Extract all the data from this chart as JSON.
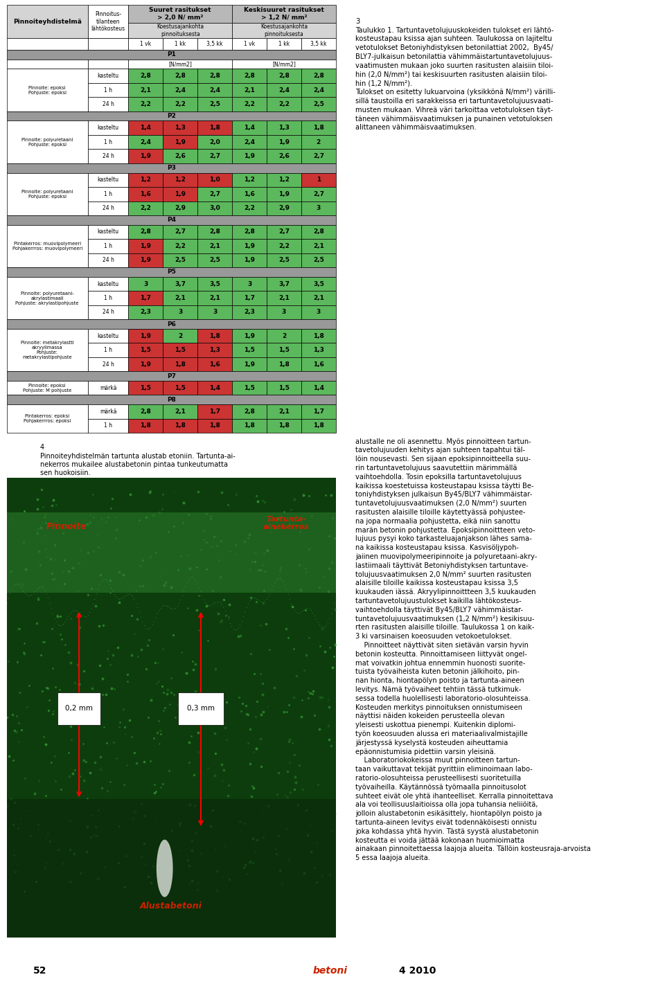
{
  "green": "#5cb85c",
  "red": "#cc3333",
  "gray_header": "#b8b8b8",
  "dark_gray_section": "#999999",
  "light_gray_header": "#d4d4d4",
  "white": "#ffffff",
  "sections": [
    {
      "id": "P1",
      "label": "Pinnoite: epoksi\nPohjuste: epoksi",
      "rows": [
        {
          "moisture": "kasteltu",
          "vals": [
            "2,8",
            "2,8",
            "2,8",
            "2,8",
            "2,8",
            "2,8"
          ],
          "colors": [
            "g",
            "g",
            "g",
            "g",
            "g",
            "g"
          ]
        },
        {
          "moisture": "1 h",
          "vals": [
            "2,1",
            "2,4",
            "2,4",
            "2,1",
            "2,4",
            "2,4"
          ],
          "colors": [
            "g",
            "g",
            "g",
            "g",
            "g",
            "g"
          ]
        },
        {
          "moisture": "24 h",
          "vals": [
            "2,2",
            "2,2",
            "2,5",
            "2,2",
            "2,2",
            "2,5"
          ],
          "colors": [
            "g",
            "g",
            "g",
            "g",
            "g",
            "g"
          ]
        }
      ]
    },
    {
      "id": "P2",
      "label": "Pinnoite: polyuretaani\nPohjuste: epoksi",
      "rows": [
        {
          "moisture": "kasteltu",
          "vals": [
            "1,4",
            "1,3",
            "1,8",
            "1,4",
            "1,3",
            "1,8"
          ],
          "colors": [
            "r",
            "r",
            "r",
            "g",
            "g",
            "g"
          ]
        },
        {
          "moisture": "1 h",
          "vals": [
            "2,4",
            "1,9",
            "2,0",
            "2,4",
            "1,9",
            "2"
          ],
          "colors": [
            "g",
            "r",
            "g",
            "g",
            "g",
            "g"
          ]
        },
        {
          "moisture": "24 h",
          "vals": [
            "1,9",
            "2,6",
            "2,7",
            "1,9",
            "2,6",
            "2,7"
          ],
          "colors": [
            "r",
            "g",
            "g",
            "g",
            "g",
            "g"
          ]
        }
      ]
    },
    {
      "id": "P3",
      "label": "Pinnoite: polyuretaani\nPohjuste: epoksi",
      "rows": [
        {
          "moisture": "kasteltu",
          "vals": [
            "1,2",
            "1,2",
            "1,0",
            "1,2",
            "1,2",
            "1"
          ],
          "colors": [
            "r",
            "r",
            "r",
            "g",
            "g",
            "r"
          ]
        },
        {
          "moisture": "1 h",
          "vals": [
            "1,6",
            "1,9",
            "2,7",
            "1,6",
            "1,9",
            "2,7"
          ],
          "colors": [
            "r",
            "r",
            "g",
            "g",
            "g",
            "g"
          ]
        },
        {
          "moisture": "24 h",
          "vals": [
            "2,2",
            "2,9",
            "3,0",
            "2,2",
            "2,9",
            "3"
          ],
          "colors": [
            "g",
            "g",
            "g",
            "g",
            "g",
            "g"
          ]
        }
      ]
    },
    {
      "id": "P4",
      "label": "Pintakerros: muovipolymeeri\nPohjakerrros: muovipolymeeri",
      "rows": [
        {
          "moisture": "kasteltu",
          "vals": [
            "2,8",
            "2,7",
            "2,8",
            "2,8",
            "2,7",
            "2,8"
          ],
          "colors": [
            "g",
            "g",
            "g",
            "g",
            "g",
            "g"
          ]
        },
        {
          "moisture": "1 h",
          "vals": [
            "1,9",
            "2,2",
            "2,1",
            "1,9",
            "2,2",
            "2,1"
          ],
          "colors": [
            "r",
            "g",
            "g",
            "g",
            "g",
            "g"
          ]
        },
        {
          "moisture": "24 h",
          "vals": [
            "1,9",
            "2,5",
            "2,5",
            "1,9",
            "2,5",
            "2,5"
          ],
          "colors": [
            "r",
            "g",
            "g",
            "g",
            "g",
            "g"
          ]
        }
      ]
    },
    {
      "id": "P5",
      "label": "Pinnoite: polyuretaani-\nakrylastimaali\nPohjuste: akrylastipohjuste",
      "rows": [
        {
          "moisture": "kasteltu",
          "vals": [
            "3",
            "3,7",
            "3,5",
            "3",
            "3,7",
            "3,5"
          ],
          "colors": [
            "g",
            "g",
            "g",
            "g",
            "g",
            "g"
          ]
        },
        {
          "moisture": "1 h",
          "vals": [
            "1,7",
            "2,1",
            "2,1",
            "1,7",
            "2,1",
            "2,1"
          ],
          "colors": [
            "r",
            "g",
            "g",
            "g",
            "g",
            "g"
          ]
        },
        {
          "moisture": "24 h",
          "vals": [
            "2,3",
            "3",
            "3",
            "2,3",
            "3",
            "3"
          ],
          "colors": [
            "g",
            "g",
            "g",
            "g",
            "g",
            "g"
          ]
        }
      ]
    },
    {
      "id": "P6",
      "label": "Pinnoite: metakrylastti\nakryylimassa\nPohjuste:\nmetakrylastipohjuste",
      "rows": [
        {
          "moisture": "kasteltu",
          "vals": [
            "1,9",
            "2",
            "1,8",
            "1,9",
            "2",
            "1,8"
          ],
          "colors": [
            "r",
            "g",
            "r",
            "g",
            "g",
            "g"
          ]
        },
        {
          "moisture": "1 h",
          "vals": [
            "1,5",
            "1,5",
            "1,3",
            "1,5",
            "1,5",
            "1,3"
          ],
          "colors": [
            "r",
            "r",
            "r",
            "g",
            "g",
            "g"
          ]
        },
        {
          "moisture": "24 h",
          "vals": [
            "1,9",
            "1,8",
            "1,6",
            "1,9",
            "1,8",
            "1,6"
          ],
          "colors": [
            "r",
            "r",
            "r",
            "g",
            "g",
            "g"
          ]
        }
      ]
    },
    {
      "id": "P7",
      "label": "Pinnoite: epoksi\nPohjuste: M pohjuste",
      "rows": [
        {
          "moisture": "märkä",
          "vals": [
            "1,5",
            "1,5",
            "1,4",
            "1,5",
            "1,5",
            "1,4"
          ],
          "colors": [
            "r",
            "r",
            "r",
            "g",
            "g",
            "g"
          ]
        }
      ]
    },
    {
      "id": "P8",
      "label": "Pintakerros: epoksi\nPohjakerrros: epoksi",
      "rows": [
        {
          "moisture": "märkä",
          "vals": [
            "2,8",
            "2,1",
            "1,7",
            "2,8",
            "2,1",
            "1,7"
          ],
          "colors": [
            "g",
            "g",
            "r",
            "g",
            "g",
            "g"
          ]
        },
        {
          "moisture": "1 h",
          "vals": [
            "1,8",
            "1,8",
            "1,8",
            "1,8",
            "1,8",
            "1,8"
          ],
          "colors": [
            "r",
            "r",
            "r",
            "g",
            "g",
            "g"
          ]
        }
      ]
    }
  ],
  "text_right_top": "3\nTaulukko 1. Tartuntavetolujuuskokeiden tulokset eri lähtö-\nkosteustapau ksissa ajan suhteen. Taulukossa on lajiteltu\nvetotulokset Betoniyhdistyksen betonilattiat 2002,  By45/\nBLY7-julkaisun betonilattia vähimmäistartuntavetolujuus-\nvaatimusten mukaan joko suurten rasitusten alaisiin tiloi-\nhin (2,0 N/mm²) tai keskisuurten rasitusten alaisiin tiloi-\nhin (1,2 N/mm²).\nTulokset on esitetty lukuarvoina (yksikkönä N/mm²) värilli-\nsillä taustoilla eri sarakkeissa eri tartuntavetolujuusvaati-\nmusten mukaan. Vihreä väri tarkoittaa vetotuloksen täyt-\ntäneen vähimmäisvaatimuksen ja punainen vetotuloksen\nalittaneen vähimmäisvaatimuksen.",
  "text_right_mid": "alustalle ne oli asennettu. Myös pinnoitteen tartun-\ntavetolujuuden kehitys ajan suhteen tapahtui täl-\nlöin nousevasti. Sen sijaan epoksipinnoitteella suu-\nrin tartuntavetolujuus saavutettiin märimmällä\nvaihtoehdolla. Tosin epoksilla tartuntavetolujuus\nkaikissa koestetuissa kosteustapau ksissa täytti Be-\ntoniyhdistyksen julkaisun By45/BLY7 vähimmäistar-\ntuntavetolujuusvaatimuksen (2,0 N/mm²) suurten\nrasitusten alaisille tiloille käytettyässä pohjustee-\nna jopa normaalia pohjustetta, eikä niin sanottu\nmarän betonin pohjustetta. Epoksipinnoittteen veto-\nlujuus pysyi koko tarkasteluajanjakson lähes sama-\nna kaikissa kosteustapau ksissa. Kasvisöljypoh-\njaiinen muovipolymeeripinnoite ja polyuretaani-akry-\nlastiimaali täyttivät Betoniyhdistyksen tartuntave-\ntolujuusvaatimuksen 2,0 N/mm² suurten rasitusten\nalaisille tiloille kaikissa kosteustapau ksissa 3,5\nkuukauden iässä. Akryylipinnoittteen 3,5 kuukauden\ntartuntavetolujuustulokset kaikilla lähtökosteus-\nvaihtoehdolla täyttivät By45/BLY7 vähimmäistar-\ntuntavetolujuusvaatimuksen (1,2 N/mm²) kesikisuu-\nrten rasitusten alaisille tiloille. Taulukossa 1 on kaik-\n3 ki varsinaisen koeosuuden vetokoetulokset.",
  "text_right_bottom": "    Pinnoitteet näyttivät siten sietävän varsin hyvin\nbetonin kosteutta. Pinnoittamiseen liittyvät ongel-\nmat voivatkin johtua ennemmin huonosti suorite-\ntuista työvaiheista kuten betonin jälkihoito, pin-\nnan hionta, hiontapölyn poisto ja tartunta-aineen\nlevitys. Nämä työvaiheet tehtiin tässä tutkimuk-\nsessa todella huolellisesti laboratorio-olosuhteissa.\nKosteuden merkitys pinnoituksen onnistumiseen\nnäyttisi näiden kokeiden perusteella olevan\nyleisesti uskottua pienempi. Kuitenkin diplomi-\ntyön koeosuuden alussa eri materiaalivalmistajille\njärjestyssä kyselystä kosteuden aiheuttamia\nepäonnistumisia pidettiin varsin yleisinä.\n    Laboratoriokokeissa muut pinnoitteen tartun-\ntaan vaikuttavat tekijät pyrittiin eliminoimaan labo-\nratorio-olosuhteissa perusteellisesti suoritetuilla\ntyövaiheilla. Käytännössä työmaalla pinnoitusolot\nsuhteet eivät ole yhtä ihanteelliset. Kerralla pinnoitettava\nala voi teollisuuslaitioissa olla jopa tuhansia neliiöitä,\njolloin alustabetonin esikäsittely, hiontapölyn poisto ja\ntartunta-aineen levitys eivät todennäköisesti onnistu\njoka kohdassa yhtä hyvin. Tästä syystä alustabetonin\nkosteutta ei voida jättää kokonaan huomioimatta\nainakaan pinnoitettaessa laajoja alueita. Tällöin kosteusraja-arvoista\n5 essa laajoja alueita.",
  "fig_caption_num": "4",
  "fig_caption_text": "Pinnoiteyhdistelmän tartunta alustab etoniin. Tartunta-ai-\nnekerros mukailee alustabetonin pintaa tunkeutumatta\nsen huokoisiin.",
  "page_number": "52",
  "journal_text": "betoni",
  "year_text": "4 2010"
}
